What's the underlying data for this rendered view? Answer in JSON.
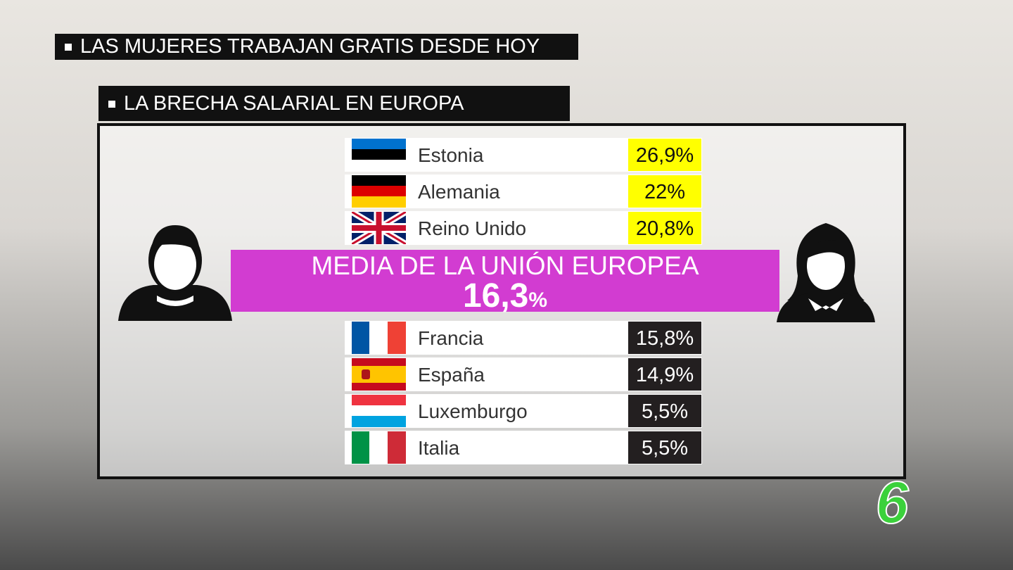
{
  "header": {
    "headline": "LAS MUJERES TRABAJAN GRATIS DESDE HOY",
    "subtitle": "LA BRECHA SALARIAL EN EUROPA"
  },
  "above_average": [
    {
      "country": "Estonia",
      "value": "26,9%"
    },
    {
      "country": "Alemania",
      "value": "22%"
    },
    {
      "country": "Reino Unido",
      "value": "20,8%"
    }
  ],
  "average": {
    "label": "MEDIA DE LA UNIÓN EUROPEA",
    "number": "16,3",
    "unit": "%"
  },
  "below_average": [
    {
      "country": "Francia",
      "value": "15,8%"
    },
    {
      "country": "España",
      "value": "14,9%"
    },
    {
      "country": "Luxemburgo",
      "value": "5,5%"
    },
    {
      "country": "Italia",
      "value": "5,5%"
    }
  ],
  "logo": "6"
}
